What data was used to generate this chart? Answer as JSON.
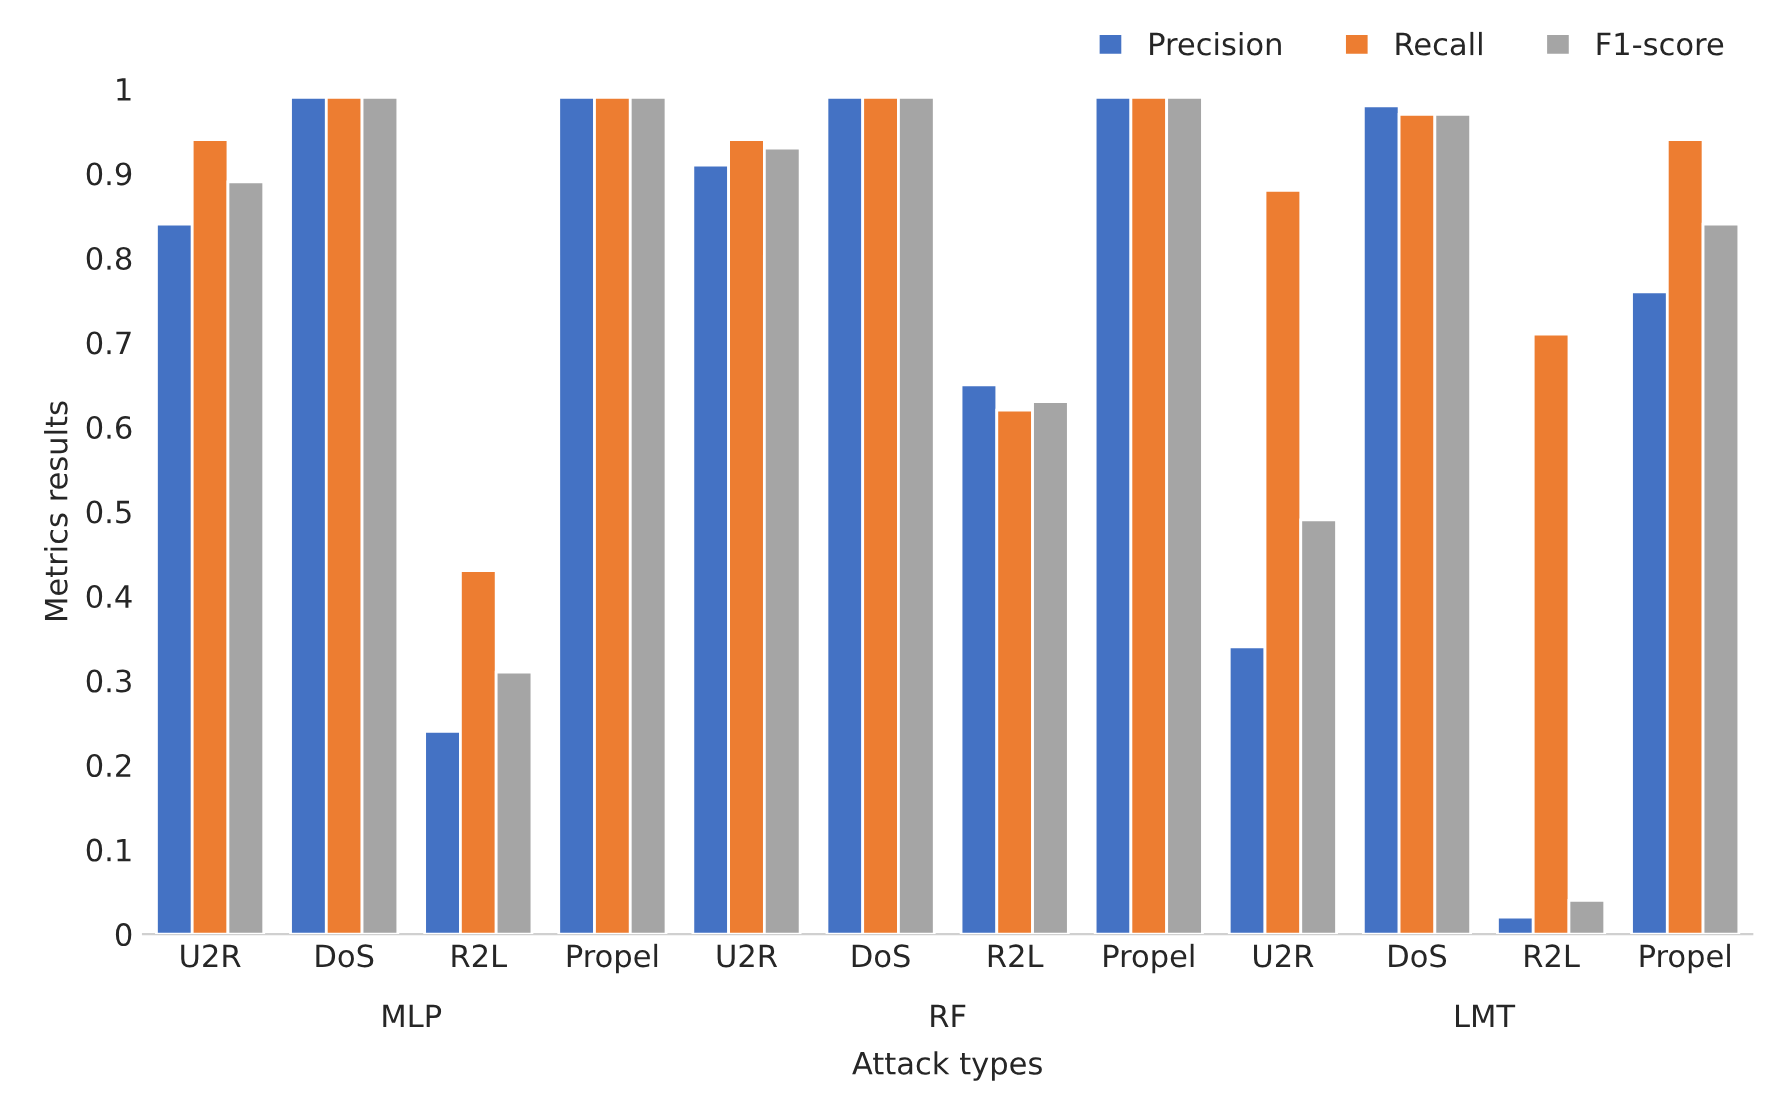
{
  "chart_data": {
    "type": "bar",
    "xlabel": "Attack types",
    "ylabel": "Metrics results",
    "categories": [
      "U2R",
      "DoS",
      "R2L",
      "Propel",
      "U2R",
      "DoS",
      "R2L",
      "Propel",
      "U2R",
      "DoS",
      "R2L",
      "Propel"
    ],
    "series": [
      {
        "name": "Precision",
        "color": "#4472c4",
        "values": [
          0.84,
          0.99,
          0.24,
          0.99,
          0.91,
          0.99,
          0.65,
          0.99,
          0.34,
          0.98,
          0.02,
          0.76
        ]
      },
      {
        "name": "Recall",
        "color": "#ed7d31",
        "values": [
          0.94,
          0.99,
          0.43,
          0.99,
          0.94,
          0.99,
          0.62,
          0.99,
          0.88,
          0.97,
          0.71,
          0.94
        ]
      },
      {
        "name": "F1-score",
        "color": "#a5a5a5",
        "values": [
          0.89,
          0.99,
          0.31,
          0.99,
          0.93,
          0.99,
          0.63,
          0.99,
          0.49,
          0.97,
          0.04,
          0.84
        ]
      }
    ],
    "annotations": [
      "MLP",
      "RF",
      "LMT"
    ],
    "ylim": [
      0,
      1.0
    ],
    "yticks": [
      0,
      0.1,
      0.2,
      0.3,
      0.4,
      0.5,
      0.6,
      0.7,
      0.8,
      0.9,
      1
    ],
    "legend": "top right"
  }
}
